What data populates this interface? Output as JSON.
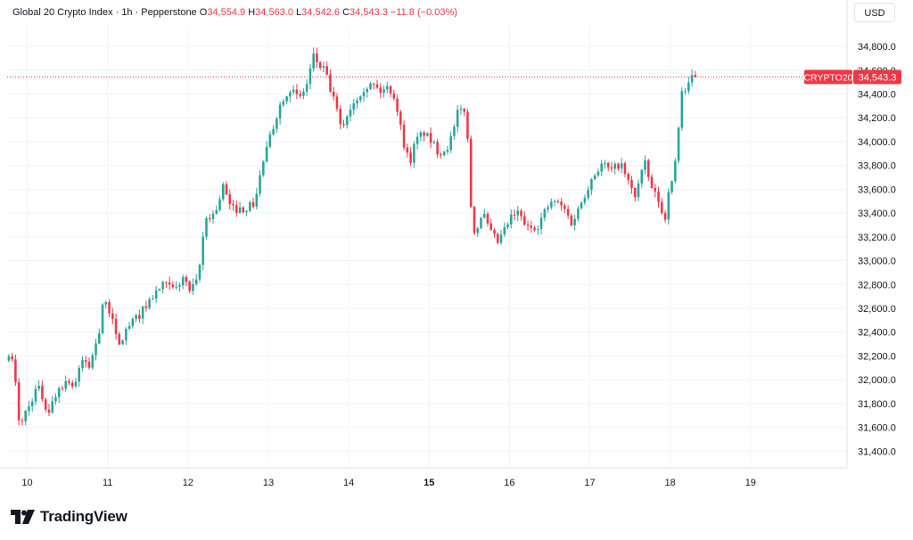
{
  "header": {
    "title": "Global 20 Crypto Index · 1h · Pepperstone",
    "o_label": "O",
    "o_value": "34,554.9",
    "h_label": "H",
    "h_value": "34,563.0",
    "l_label": "L",
    "l_value": "34,542.6",
    "c_label": "C",
    "c_value": "34,543.3",
    "change": "−11.8 (−0.03%)"
  },
  "currency": "USD",
  "logo_text": "TradingView",
  "colors": {
    "up": "#26a69a",
    "down": "#f23645",
    "grid": "#f0f3fa",
    "axis": "#e0e3eb",
    "text": "#131722"
  },
  "chart_data": {
    "type": "candlestick",
    "symbol_label": "CRYPTO20",
    "last_price_label": "34,543.3",
    "last_price": 34543.3,
    "ylim": [
      31260,
      34980
    ],
    "x_range": [
      9.75,
      20.2
    ],
    "y_ticks": [
      {
        "value": 31400,
        "label": "31,400.0"
      },
      {
        "value": 31600,
        "label": "31,600.0"
      },
      {
        "value": 31800,
        "label": "31,800.0"
      },
      {
        "value": 32000,
        "label": "32,000.0"
      },
      {
        "value": 32200,
        "label": "32,200.0"
      },
      {
        "value": 32400,
        "label": "32,400.0"
      },
      {
        "value": 32600,
        "label": "32,600.0"
      },
      {
        "value": 32800,
        "label": "32,800.0"
      },
      {
        "value": 33000,
        "label": "33,000.0"
      },
      {
        "value": 33200,
        "label": "33,200.0"
      },
      {
        "value": 33400,
        "label": "33,400.0"
      },
      {
        "value": 33600,
        "label": "33,600.0"
      },
      {
        "value": 33800,
        "label": "33,800.0"
      },
      {
        "value": 34000,
        "label": "34,000.0"
      },
      {
        "value": 34200,
        "label": "34,200.0"
      },
      {
        "value": 34400,
        "label": "34,400.0"
      },
      {
        "value": 34600,
        "label": "34,600.0"
      },
      {
        "value": 34800,
        "label": "34,800.0"
      }
    ],
    "x_ticks": [
      {
        "day": 10,
        "label": "10",
        "bold": false
      },
      {
        "day": 11,
        "label": "11",
        "bold": false
      },
      {
        "day": 12,
        "label": "12",
        "bold": false
      },
      {
        "day": 13,
        "label": "13",
        "bold": false
      },
      {
        "day": 14,
        "label": "14",
        "bold": false
      },
      {
        "day": 15,
        "label": "15",
        "bold": true
      },
      {
        "day": 16,
        "label": "16",
        "bold": false
      },
      {
        "day": 17,
        "label": "17",
        "bold": false
      },
      {
        "day": 18,
        "label": "18",
        "bold": false
      },
      {
        "day": 19,
        "label": "19",
        "bold": false
      }
    ],
    "path": [
      [
        9.75,
        32180
      ],
      [
        9.85,
        32150
      ],
      [
        9.92,
        31620
      ],
      [
        10.05,
        31790
      ],
      [
        10.15,
        31950
      ],
      [
        10.28,
        31720
      ],
      [
        10.42,
        31940
      ],
      [
        10.55,
        32000
      ],
      [
        10.6,
        31930
      ],
      [
        10.72,
        32180
      ],
      [
        10.8,
        32100
      ],
      [
        10.85,
        32250
      ],
      [
        10.93,
        32450
      ],
      [
        10.96,
        32650
      ],
      [
        11.08,
        32550
      ],
      [
        11.15,
        32250
      ],
      [
        11.25,
        32420
      ],
      [
        11.42,
        32550
      ],
      [
        11.58,
        32700
      ],
      [
        11.72,
        32800
      ],
      [
        11.86,
        32750
      ],
      [
        11.96,
        32860
      ],
      [
        12.05,
        32740
      ],
      [
        12.12,
        32800
      ],
      [
        12.18,
        33000
      ],
      [
        12.23,
        33350
      ],
      [
        12.36,
        33400
      ],
      [
        12.46,
        33630
      ],
      [
        12.55,
        33440
      ],
      [
        12.7,
        33430
      ],
      [
        12.85,
        33480
      ],
      [
        12.95,
        33820
      ],
      [
        13.05,
        34050
      ],
      [
        13.15,
        34280
      ],
      [
        13.23,
        34400
      ],
      [
        13.3,
        34450
      ],
      [
        13.4,
        34350
      ],
      [
        13.5,
        34480
      ],
      [
        13.58,
        34720
      ],
      [
        13.65,
        34640
      ],
      [
        13.72,
        34600
      ],
      [
        13.8,
        34420
      ],
      [
        13.88,
        34250
      ],
      [
        13.92,
        34110
      ],
      [
        13.97,
        34170
      ],
      [
        14.05,
        34300
      ],
      [
        14.15,
        34400
      ],
      [
        14.22,
        34460
      ],
      [
        14.32,
        34480
      ],
      [
        14.42,
        34420
      ],
      [
        14.52,
        34460
      ],
      [
        14.6,
        34360
      ],
      [
        14.7,
        34000
      ],
      [
        14.78,
        33820
      ],
      [
        14.85,
        34000
      ],
      [
        14.95,
        34080
      ],
      [
        15.05,
        34000
      ],
      [
        15.15,
        33900
      ],
      [
        15.25,
        33960
      ],
      [
        15.32,
        34070
      ],
      [
        15.38,
        34250
      ],
      [
        15.48,
        34280
      ],
      [
        15.55,
        33350
      ],
      [
        15.6,
        33220
      ],
      [
        15.68,
        33420
      ],
      [
        15.78,
        33240
      ],
      [
        15.88,
        33150
      ],
      [
        15.93,
        33220
      ],
      [
        16.05,
        33370
      ],
      [
        16.13,
        33400
      ],
      [
        16.25,
        33270
      ],
      [
        16.38,
        33300
      ],
      [
        16.48,
        33440
      ],
      [
        16.58,
        33500
      ],
      [
        16.7,
        33440
      ],
      [
        16.8,
        33310
      ],
      [
        16.92,
        33500
      ],
      [
        17.05,
        33700
      ],
      [
        17.18,
        33820
      ],
      [
        17.28,
        33750
      ],
      [
        17.4,
        33820
      ],
      [
        17.5,
        33660
      ],
      [
        17.58,
        33540
      ],
      [
        17.7,
        33830
      ],
      [
        17.78,
        33620
      ],
      [
        17.88,
        33500
      ],
      [
        17.95,
        33300
      ],
      [
        17.99,
        33600
      ],
      [
        18.05,
        33650
      ],
      [
        18.1,
        33920
      ],
      [
        18.16,
        34430
      ],
      [
        18.22,
        34420
      ],
      [
        18.3,
        34550
      ],
      [
        18.35,
        34543
      ]
    ]
  }
}
